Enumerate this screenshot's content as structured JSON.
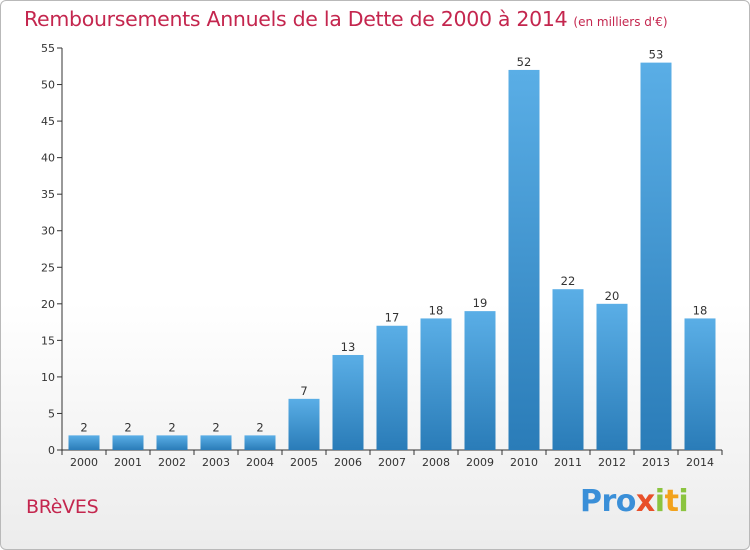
{
  "chart_data": {
    "type": "bar",
    "title": "Remboursements Annuels de la Dette de 2000 à 2014",
    "subtitle": "(en milliers d'€)",
    "categories": [
      "2000",
      "2001",
      "2002",
      "2003",
      "2004",
      "2005",
      "2006",
      "2007",
      "2008",
      "2009",
      "2010",
      "2011",
      "2012",
      "2013",
      "2014"
    ],
    "values": [
      2,
      2,
      2,
      2,
      2,
      7,
      13,
      17,
      18,
      19,
      52,
      22,
      20,
      53,
      18
    ],
    "ylim": [
      0,
      55
    ],
    "yticks": [
      0,
      5,
      10,
      15,
      20,
      25,
      30,
      35,
      40,
      45,
      50,
      55
    ],
    "xlabel": "",
    "ylabel": "",
    "grid": false
  },
  "footer": {
    "town": "BRèVES",
    "logo_letters": [
      "P",
      "r",
      "o",
      "x",
      "i",
      "t",
      "i"
    ]
  },
  "colors": {
    "title": "#c4264e",
    "bar_light": "#5aaee6",
    "bar_dark": "#2a7cb8",
    "logo": [
      "#3a8fd8",
      "#3a8fd8",
      "#3a8fd8",
      "#e8502a",
      "#8bc43f",
      "#f2a21c",
      "#8bc43f"
    ]
  }
}
